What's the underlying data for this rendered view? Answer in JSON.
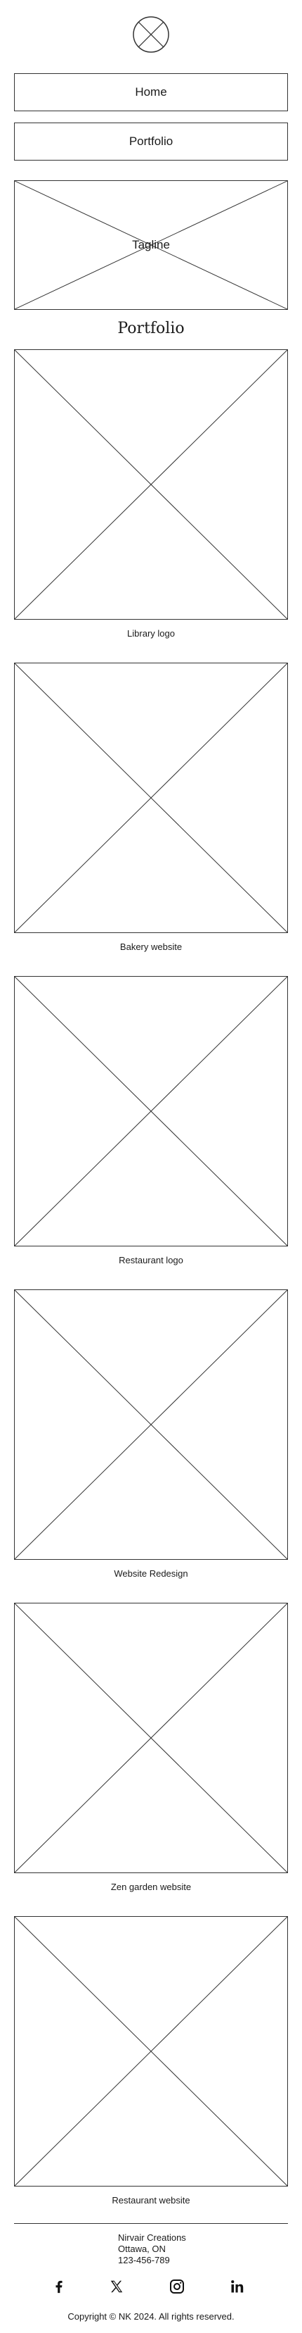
{
  "header": {
    "logo_icon": "circle-x-logo-icon"
  },
  "nav": {
    "home_label": "Home",
    "portfolio_label": "Portfolio"
  },
  "hero": {
    "tagline": "Tagline"
  },
  "portfolio": {
    "title": "Portfolio",
    "items": [
      {
        "caption": "Library logo"
      },
      {
        "caption": "Bakery website"
      },
      {
        "caption": "Restaurant logo"
      },
      {
        "caption": "Website Redesign"
      },
      {
        "caption": "Zen garden website"
      },
      {
        "caption": "Restaurant website"
      }
    ]
  },
  "footer": {
    "company": "Nirvair Creations",
    "location": "Ottawa, ON",
    "phone": "123-456-789",
    "social": [
      {
        "icon": "facebook-icon"
      },
      {
        "icon": "x-twitter-icon"
      },
      {
        "icon": "instagram-icon"
      },
      {
        "icon": "linkedin-icon"
      }
    ],
    "copyright": "Copyright © NK 2024. All rights reserved."
  },
  "colors": {
    "background": "#ffffff",
    "stroke": "#333333",
    "text": "#1a1a1a"
  }
}
